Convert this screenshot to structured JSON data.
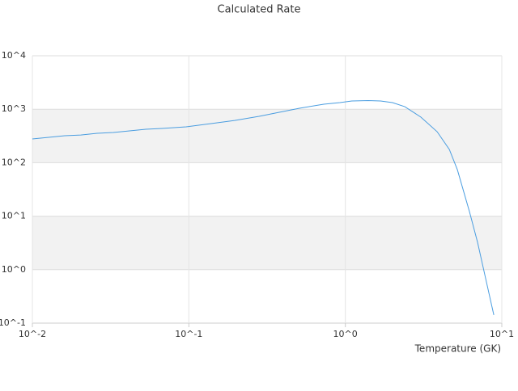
{
  "chart_data": {
    "type": "line",
    "title": "Calculated Rate",
    "x_label": "Temperature (GK)",
    "x": [
      0.01,
      0.0127,
      0.0161,
      0.0204,
      0.0259,
      0.0329,
      0.0418,
      0.053,
      0.0673,
      0.0962,
      0.137,
      0.196,
      0.281,
      0.378,
      0.509,
      0.728,
      0.924,
      1.1,
      1.4,
      1.68,
      2.0,
      2.4,
      3.04,
      3.86,
      4.62,
      5.2,
      6.21,
      7.0,
      7.89,
      8.89
    ],
    "series": [
      {
        "color": "#4a9de0",
        "values": [
          278,
          298,
          319,
          330,
          355,
          367,
          394,
          422,
          437,
          468,
          537,
          617,
          736,
          877,
          1043,
          1242,
          1330,
          1426,
          1452,
          1426,
          1330,
          1117,
          711,
          380,
          177,
          74,
          12.2,
          3.24,
          0.676,
          0.142
        ]
      }
    ],
    "xscale": "log",
    "yscale": "log",
    "xlim": [
      0.01,
      10
    ],
    "ylim": [
      0.1,
      10000
    ],
    "xticks": [
      {
        "value": 0.01,
        "label": "10^-2"
      },
      {
        "value": 0.1,
        "label": "10^-1"
      },
      {
        "value": 1,
        "label": "10^0"
      },
      {
        "value": 10,
        "label": "10^1"
      }
    ],
    "yticks": [
      {
        "value": 0.1,
        "label": "10^-1"
      },
      {
        "value": 1,
        "label": "10^0"
      },
      {
        "value": 10,
        "label": "10^1"
      },
      {
        "value": 100,
        "label": "10^2"
      },
      {
        "value": 1000,
        "label": "10^3"
      },
      {
        "value": 10000,
        "label": "10^4"
      }
    ],
    "grid": true,
    "bands": true
  }
}
